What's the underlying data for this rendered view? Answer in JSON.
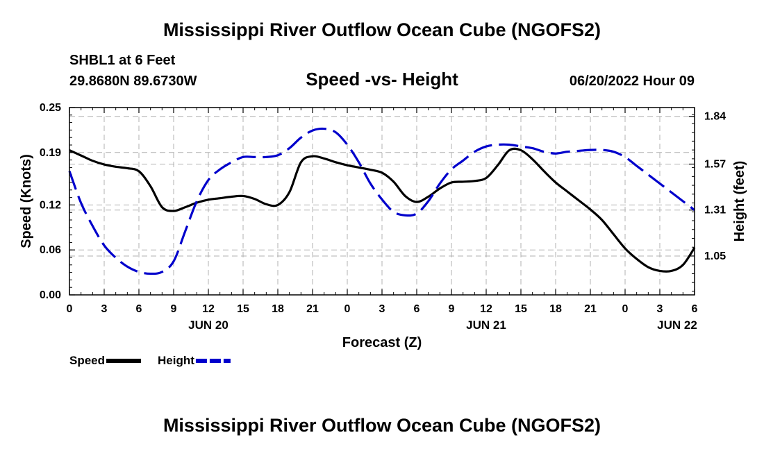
{
  "header": {
    "title": "Mississippi River Outflow Ocean Cube (NGOFS2)",
    "station": "SHBL1 at 6 Feet",
    "coords": "29.8680N  89.6730W",
    "subtitle": "Speed -vs- Height",
    "datetime": "06/20/2022 Hour 09"
  },
  "footer": {
    "title": "Mississippi River Outflow Ocean Cube (NGOFS2)"
  },
  "chart_data": {
    "type": "line",
    "title": "Speed -vs- Height",
    "xlabel": "Forecast (Z)",
    "ylabel": "Speed (Knots)",
    "y2label": "Height (feet)",
    "x_range": [
      0,
      54
    ],
    "x_tick_values": [
      0,
      3,
      6,
      9,
      12,
      15,
      18,
      21,
      24,
      27,
      30,
      33,
      36,
      39,
      42,
      45,
      48,
      51,
      54
    ],
    "x_tick_labels": [
      "0",
      "3",
      "6",
      "9",
      "12",
      "15",
      "18",
      "21",
      "0",
      "3",
      "6",
      "9",
      "12",
      "15",
      "18",
      "21",
      "0",
      "3",
      "6"
    ],
    "date_labels": [
      {
        "x": 12,
        "label": "JUN 20"
      },
      {
        "x": 36,
        "label": "JUN 21"
      },
      {
        "x": 52.5,
        "label": "JUN 22"
      }
    ],
    "ylim": [
      0,
      0.25
    ],
    "y_ticks": [
      0.0,
      0.06,
      0.12,
      0.19,
      0.25
    ],
    "y_tick_labels": [
      "0.00",
      "0.06",
      "0.12",
      "0.19",
      "0.25"
    ],
    "y2lim": [
      0.83,
      1.89
    ],
    "y2_ticks": [
      1.05,
      1.31,
      1.57,
      1.84
    ],
    "y2_tick_labels": [
      "1.05",
      "1.31",
      "1.57",
      "1.84"
    ],
    "grid": true,
    "legend_position": "bottom-left",
    "series": [
      {
        "name": "Speed",
        "axis": "left",
        "color": "#000000",
        "style": "solid",
        "x": [
          0,
          1,
          2,
          3,
          4,
          5,
          6,
          7,
          8,
          9,
          10,
          11,
          12,
          13,
          14,
          15,
          16,
          17,
          18,
          19,
          20,
          21,
          22,
          23,
          24,
          25,
          26,
          27,
          28,
          29,
          30,
          31,
          32,
          33,
          34,
          35,
          36,
          37,
          38,
          39,
          40,
          41,
          42,
          43,
          44,
          45,
          46,
          47,
          48,
          49,
          50,
          51,
          52,
          53,
          54
        ],
        "values": [
          0.193,
          0.186,
          0.179,
          0.174,
          0.171,
          0.169,
          0.165,
          0.145,
          0.117,
          0.112,
          0.117,
          0.123,
          0.127,
          0.129,
          0.131,
          0.132,
          0.128,
          0.121,
          0.12,
          0.137,
          0.177,
          0.185,
          0.182,
          0.177,
          0.173,
          0.17,
          0.167,
          0.163,
          0.151,
          0.132,
          0.124,
          0.131,
          0.142,
          0.15,
          0.151,
          0.152,
          0.156,
          0.173,
          0.193,
          0.193,
          0.181,
          0.165,
          0.15,
          0.138,
          0.126,
          0.114,
          0.1,
          0.081,
          0.062,
          0.048,
          0.037,
          0.032,
          0.032,
          0.04,
          0.063
        ]
      },
      {
        "name": "Height",
        "axis": "right",
        "color": "#0000cc",
        "style": "dashed",
        "x": [
          0,
          1,
          2,
          3,
          4,
          5,
          6,
          7,
          8,
          9,
          10,
          11,
          12,
          13,
          14,
          15,
          16,
          17,
          18,
          19,
          20,
          21,
          22,
          23,
          24,
          25,
          26,
          27,
          28,
          29,
          30,
          31,
          32,
          33,
          34,
          35,
          36,
          37,
          38,
          39,
          40,
          41,
          42,
          43,
          44,
          45,
          46,
          47,
          48,
          49,
          50,
          51,
          52,
          53,
          54
        ],
        "values": [
          1.53,
          1.35,
          1.22,
          1.11,
          1.04,
          0.99,
          0.96,
          0.95,
          0.96,
          1.02,
          1.19,
          1.36,
          1.48,
          1.54,
          1.58,
          1.61,
          1.61,
          1.61,
          1.62,
          1.66,
          1.72,
          1.76,
          1.77,
          1.75,
          1.68,
          1.58,
          1.46,
          1.37,
          1.3,
          1.28,
          1.29,
          1.36,
          1.46,
          1.54,
          1.59,
          1.64,
          1.67,
          1.68,
          1.68,
          1.67,
          1.66,
          1.64,
          1.63,
          1.64,
          1.645,
          1.65,
          1.65,
          1.64,
          1.61,
          1.56,
          1.51,
          1.46,
          1.41,
          1.36,
          1.31
        ]
      }
    ]
  }
}
